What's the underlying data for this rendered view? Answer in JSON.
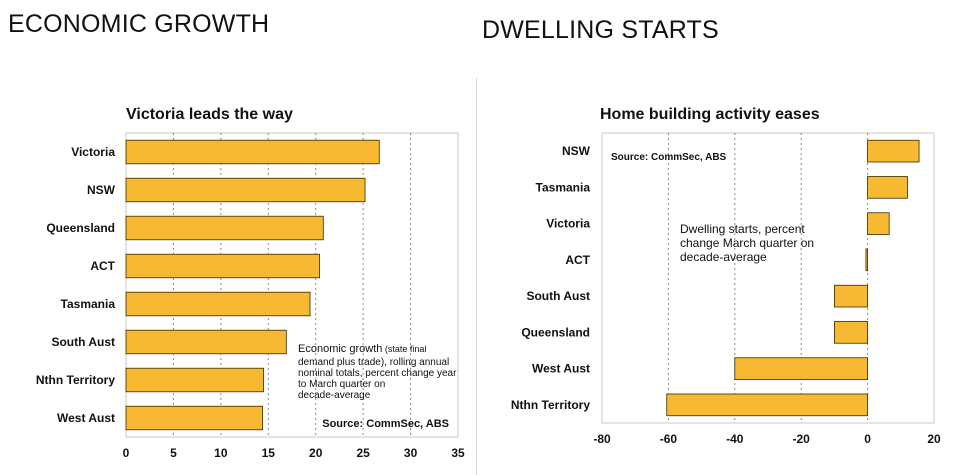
{
  "headings": {
    "left": "ECONOMIC GROWTH",
    "right": "DWELLING STARTS"
  },
  "colors": {
    "bar_fill": "#f7b932",
    "bar_stroke": "#3a2a00",
    "text": "#111111",
    "grid": "#888888"
  },
  "chart_data": [
    {
      "type": "bar",
      "orientation": "horizontal",
      "title": "Victoria leads the way",
      "categories": [
        "Victoria",
        "NSW",
        "Queensland",
        "ACT",
        "Tasmania",
        "South Aust",
        "Nthn Territory",
        "West Aust"
      ],
      "values": [
        26.7,
        25.2,
        20.8,
        20.4,
        19.4,
        16.9,
        14.5,
        14.4
      ],
      "xlim": [
        0,
        35
      ],
      "xticks": [
        "0",
        "5",
        "10",
        "15",
        "20",
        "25",
        "30",
        "35"
      ],
      "grid": "vertical dotted",
      "annotation_lead": "Economic growth",
      "annotation_lead_small": " (state final",
      "annotation_lines": [
        "demand plus trade), rolling annual",
        "nominal totals, percent change year",
        "to March quarter on",
        "decade-average"
      ],
      "source": "Source: CommSec, ABS"
    },
    {
      "type": "bar",
      "orientation": "horizontal",
      "title": "Home building activity eases",
      "categories": [
        "NSW",
        "Tasmania",
        "Victoria",
        "ACT",
        "South Aust",
        "Queensland",
        "West Aust",
        "Nthn Territory"
      ],
      "values": [
        15.5,
        12,
        6.5,
        -0.5,
        -10,
        -10,
        -40,
        -60.5
      ],
      "xlim": [
        -80,
        20
      ],
      "xticks": [
        "-80",
        "-60",
        "-40",
        "-20",
        "0",
        "20"
      ],
      "grid": "vertical dotted",
      "source": "Source: CommSec, ABS",
      "annotation_lines": [
        "Dwelling starts, percent",
        "change March quarter on",
        "decade-average"
      ]
    }
  ]
}
